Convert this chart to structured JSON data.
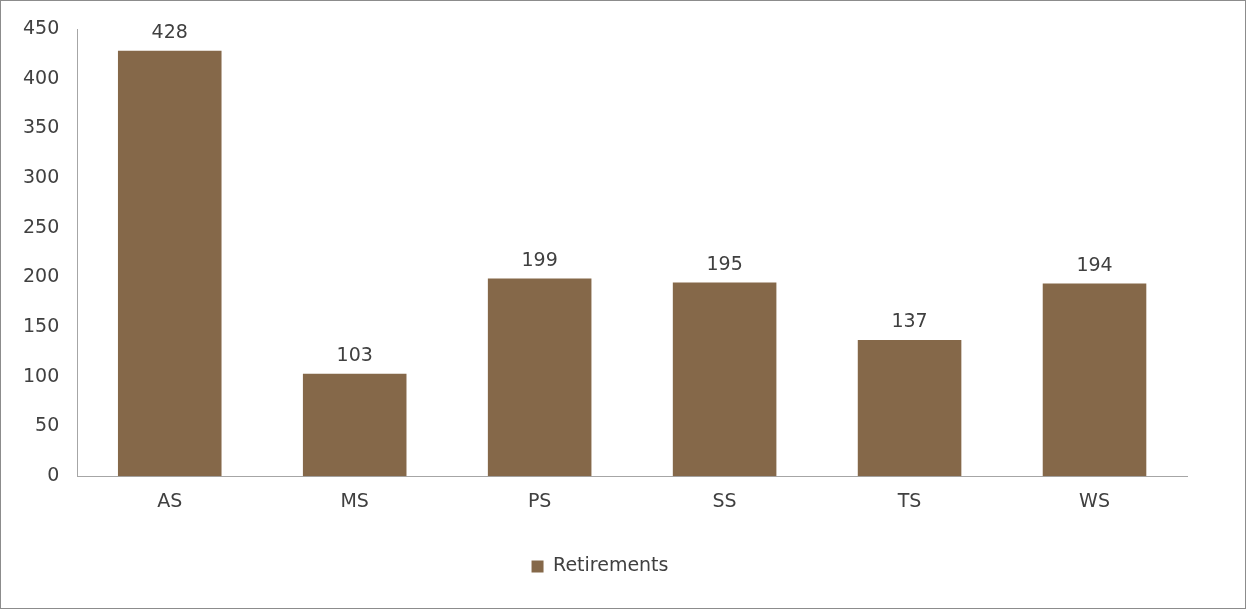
{
  "chart_data": {
    "type": "bar",
    "categories": [
      "AS",
      "MS",
      "PS",
      "SS",
      "TS",
      "WS"
    ],
    "series": [
      {
        "name": "Retirements",
        "color": "#856849",
        "values": [
          428,
          103,
          199,
          195,
          137,
          194
        ]
      }
    ],
    "ylim": [
      0,
      450
    ],
    "yticks": [
      0,
      50,
      100,
      150,
      200,
      250,
      300,
      350,
      400,
      450
    ],
    "grid": false,
    "legend": "bottom",
    "data_labels": true
  }
}
